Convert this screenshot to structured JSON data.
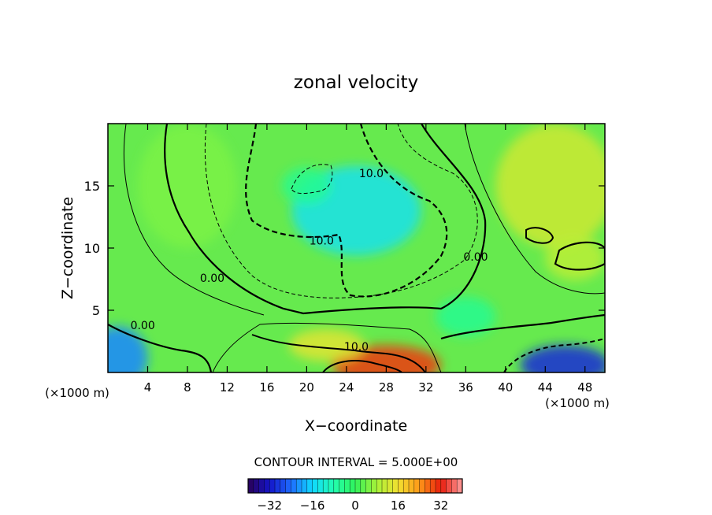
{
  "chart_data": {
    "type": "heatmap",
    "title": "zonal velocity",
    "xlabel": "X−coordinate",
    "ylabel": "Z−coordinate",
    "x_unit": "(×1000 m)",
    "z_unit": "(×1000 m)",
    "xlim": [
      0,
      50
    ],
    "ylim": [
      0,
      20
    ],
    "x_ticks": [
      4,
      8,
      12,
      16,
      20,
      24,
      28,
      32,
      36,
      40,
      44,
      48
    ],
    "y_ticks": [
      5,
      10,
      15
    ],
    "contour_interval": "CONTOUR INTERVAL = 5.000E+00",
    "contour_labels": [
      {
        "text": "10.0",
        "x": 26.5,
        "z": 16.0
      },
      {
        "text": "10.0",
        "x": 21.5,
        "z": 10.6
      },
      {
        "text": "0.00",
        "x": 10.5,
        "z": 7.6
      },
      {
        "text": "0.00",
        "x": 37.0,
        "z": 9.3
      },
      {
        "text": "0.00",
        "x": 3.5,
        "z": 3.8
      },
      {
        "text": "10.0",
        "x": 25.0,
        "z": 2.1
      }
    ],
    "colorbar": {
      "range": [
        -40,
        40
      ],
      "ticks": [
        -32,
        -16,
        0,
        16,
        32
      ],
      "colors": [
        "#2a0057",
        "#1414c8",
        "#1e6cff",
        "#10d8ff",
        "#22ffb0",
        "#30f25a",
        "#a8f238",
        "#f2e030",
        "#ff9818",
        "#e81c0c",
        "#ff9e9e"
      ]
    },
    "field_blobs": [
      {
        "x": 25,
        "z": 13.0,
        "v": -14,
        "sx": 6.5,
        "sz": 3.6
      },
      {
        "x": 20,
        "z": 15.0,
        "v": -5,
        "sx": 2.5,
        "sz": 1.5
      },
      {
        "x": 28,
        "z": 0.6,
        "v": 30,
        "sx": 5.5,
        "sz": 1.6
      },
      {
        "x": 22,
        "z": 2.2,
        "v": 14,
        "sx": 3.8,
        "sz": 1.3
      },
      {
        "x": 46,
        "z": 0.6,
        "v": -30,
        "sx": 4.5,
        "sz": 1.6
      },
      {
        "x": 1,
        "z": 1.2,
        "v": -22,
        "sx": 3.0,
        "sz": 2.5
      },
      {
        "x": 45,
        "z": 15.0,
        "v": 12,
        "sx": 6.0,
        "sz": 5.0
      },
      {
        "x": 47,
        "z": 9.2,
        "v": 10,
        "sx": 3.0,
        "sz": 1.8
      },
      {
        "x": 8,
        "z": 15.0,
        "v": 5,
        "sx": 5.0,
        "sz": 5.0
      },
      {
        "x": 36,
        "z": 4.5,
        "v": -5,
        "sx": 3.0,
        "sz": 1.6
      }
    ]
  }
}
